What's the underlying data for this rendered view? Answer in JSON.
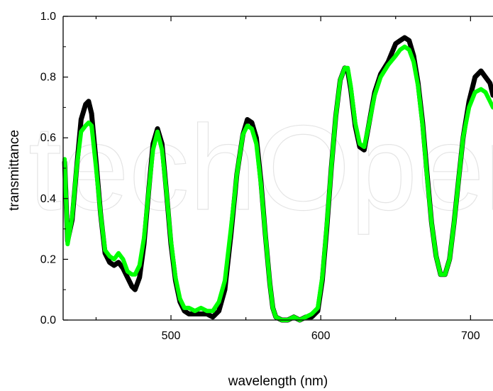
{
  "watermark": "techOpen",
  "chart_data": {
    "type": "line",
    "xlabel": "wavelength (nm)",
    "ylabel": "transmittance",
    "xlim": [
      428,
      715
    ],
    "ylim": [
      0.0,
      1.0
    ],
    "x_ticks": [
      500,
      600,
      700
    ],
    "y_ticks": [
      0.0,
      0.2,
      0.4,
      0.6,
      0.8,
      1.0
    ],
    "y_tick_labels": [
      "0.0",
      "0.2",
      "0.4",
      "0.6",
      "0.8",
      "1.0"
    ],
    "grid": false,
    "series": [
      {
        "color": "#000000",
        "points": [
          [
            429,
            0.52
          ],
          [
            431,
            0.26
          ],
          [
            434,
            0.33
          ],
          [
            437,
            0.5
          ],
          [
            440,
            0.66
          ],
          [
            443,
            0.71
          ],
          [
            445,
            0.72
          ],
          [
            447,
            0.68
          ],
          [
            450,
            0.52
          ],
          [
            453,
            0.35
          ],
          [
            456,
            0.22
          ],
          [
            459,
            0.19
          ],
          [
            462,
            0.18
          ],
          [
            465,
            0.19
          ],
          [
            468,
            0.17
          ],
          [
            471,
            0.14
          ],
          [
            474,
            0.11
          ],
          [
            476,
            0.1
          ],
          [
            479,
            0.14
          ],
          [
            482,
            0.25
          ],
          [
            485,
            0.42
          ],
          [
            488,
            0.58
          ],
          [
            491,
            0.63
          ],
          [
            494,
            0.58
          ],
          [
            497,
            0.42
          ],
          [
            500,
            0.25
          ],
          [
            503,
            0.13
          ],
          [
            506,
            0.06
          ],
          [
            509,
            0.03
          ],
          [
            512,
            0.02
          ],
          [
            516,
            0.02
          ],
          [
            520,
            0.02
          ],
          [
            524,
            0.02
          ],
          [
            528,
            0.01
          ],
          [
            532,
            0.03
          ],
          [
            536,
            0.1
          ],
          [
            540,
            0.28
          ],
          [
            544,
            0.48
          ],
          [
            548,
            0.61
          ],
          [
            551,
            0.66
          ],
          [
            554,
            0.65
          ],
          [
            557,
            0.6
          ],
          [
            560,
            0.46
          ],
          [
            563,
            0.28
          ],
          [
            566,
            0.12
          ],
          [
            568,
            0.04
          ],
          [
            570,
            0.01
          ],
          [
            574,
            0.0
          ],
          [
            578,
            0.0
          ],
          [
            582,
            0.01
          ],
          [
            586,
            0.0
          ],
          [
            590,
            0.01
          ],
          [
            594,
            0.01
          ],
          [
            598,
            0.03
          ],
          [
            601,
            0.13
          ],
          [
            604,
            0.3
          ],
          [
            607,
            0.5
          ],
          [
            610,
            0.67
          ],
          [
            613,
            0.79
          ],
          [
            616,
            0.83
          ],
          [
            618,
            0.82
          ],
          [
            620,
            0.76
          ],
          [
            623,
            0.64
          ],
          [
            626,
            0.57
          ],
          [
            629,
            0.56
          ],
          [
            632,
            0.64
          ],
          [
            636,
            0.75
          ],
          [
            640,
            0.81
          ],
          [
            645,
            0.85
          ],
          [
            650,
            0.91
          ],
          [
            653,
            0.92
          ],
          [
            656,
            0.93
          ],
          [
            659,
            0.92
          ],
          [
            662,
            0.87
          ],
          [
            665,
            0.78
          ],
          [
            668,
            0.65
          ],
          [
            671,
            0.48
          ],
          [
            674,
            0.32
          ],
          [
            677,
            0.21
          ],
          [
            680,
            0.15
          ],
          [
            683,
            0.15
          ],
          [
            686,
            0.2
          ],
          [
            689,
            0.32
          ],
          [
            692,
            0.46
          ],
          [
            695,
            0.6
          ],
          [
            699,
            0.72
          ],
          [
            703,
            0.8
          ],
          [
            707,
            0.82
          ],
          [
            710,
            0.8
          ],
          [
            713,
            0.78
          ],
          [
            715,
            0.74
          ]
        ]
      },
      {
        "color": "#00ff00",
        "points": [
          [
            429,
            0.53
          ],
          [
            431,
            0.25
          ],
          [
            434,
            0.34
          ],
          [
            437,
            0.5
          ],
          [
            440,
            0.62
          ],
          [
            443,
            0.64
          ],
          [
            445,
            0.65
          ],
          [
            447,
            0.64
          ],
          [
            450,
            0.5
          ],
          [
            453,
            0.35
          ],
          [
            456,
            0.23
          ],
          [
            459,
            0.21
          ],
          [
            462,
            0.2
          ],
          [
            465,
            0.22
          ],
          [
            468,
            0.2
          ],
          [
            471,
            0.16
          ],
          [
            474,
            0.15
          ],
          [
            476,
            0.15
          ],
          [
            479,
            0.18
          ],
          [
            482,
            0.27
          ],
          [
            485,
            0.42
          ],
          [
            488,
            0.56
          ],
          [
            491,
            0.62
          ],
          [
            494,
            0.56
          ],
          [
            497,
            0.42
          ],
          [
            500,
            0.26
          ],
          [
            503,
            0.14
          ],
          [
            506,
            0.07
          ],
          [
            509,
            0.04
          ],
          [
            512,
            0.04
          ],
          [
            516,
            0.03
          ],
          [
            520,
            0.04
          ],
          [
            524,
            0.03
          ],
          [
            528,
            0.03
          ],
          [
            532,
            0.06
          ],
          [
            536,
            0.13
          ],
          [
            540,
            0.3
          ],
          [
            544,
            0.48
          ],
          [
            548,
            0.61
          ],
          [
            551,
            0.64
          ],
          [
            554,
            0.63
          ],
          [
            557,
            0.58
          ],
          [
            560,
            0.45
          ],
          [
            563,
            0.28
          ],
          [
            566,
            0.12
          ],
          [
            568,
            0.04
          ],
          [
            570,
            0.01
          ],
          [
            574,
            0.0
          ],
          [
            578,
            0.0
          ],
          [
            582,
            0.01
          ],
          [
            586,
            0.0
          ],
          [
            590,
            0.01
          ],
          [
            594,
            0.02
          ],
          [
            598,
            0.04
          ],
          [
            601,
            0.14
          ],
          [
            604,
            0.31
          ],
          [
            607,
            0.5
          ],
          [
            610,
            0.67
          ],
          [
            613,
            0.79
          ],
          [
            616,
            0.83
          ],
          [
            618,
            0.83
          ],
          [
            620,
            0.77
          ],
          [
            623,
            0.65
          ],
          [
            626,
            0.58
          ],
          [
            629,
            0.57
          ],
          [
            632,
            0.64
          ],
          [
            636,
            0.74
          ],
          [
            640,
            0.8
          ],
          [
            645,
            0.84
          ],
          [
            650,
            0.87
          ],
          [
            653,
            0.89
          ],
          [
            656,
            0.9
          ],
          [
            659,
            0.89
          ],
          [
            662,
            0.85
          ],
          [
            665,
            0.77
          ],
          [
            668,
            0.64
          ],
          [
            671,
            0.47
          ],
          [
            674,
            0.32
          ],
          [
            677,
            0.21
          ],
          [
            680,
            0.15
          ],
          [
            683,
            0.15
          ],
          [
            686,
            0.2
          ],
          [
            689,
            0.32
          ],
          [
            692,
            0.46
          ],
          [
            695,
            0.6
          ],
          [
            699,
            0.7
          ],
          [
            703,
            0.75
          ],
          [
            707,
            0.76
          ],
          [
            710,
            0.75
          ],
          [
            713,
            0.72
          ],
          [
            715,
            0.7
          ]
        ]
      }
    ]
  }
}
